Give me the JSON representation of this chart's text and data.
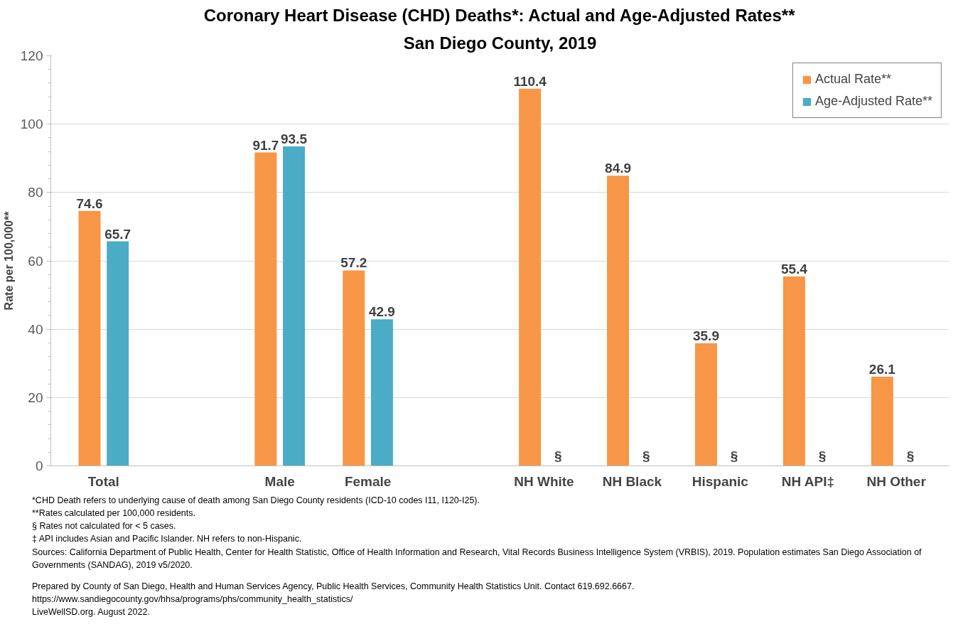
{
  "chart_data": {
    "type": "bar",
    "title": "Coronary Heart Disease (CHD) Deaths*: Actual and Age-Adjusted Rates**",
    "subtitle": "San Diego County, 2019",
    "ylabel": "Rate per 100,000**",
    "categories": [
      "Total",
      null,
      "Male",
      "Female",
      null,
      "NH White",
      "NH Black",
      "Hispanic",
      "NH API‡",
      "NH Other"
    ],
    "series": [
      {
        "name": "Actual Rate**",
        "color": "#f79646",
        "values": [
          74.6,
          null,
          91.7,
          57.2,
          null,
          110.4,
          84.9,
          35.9,
          55.4,
          26.1
        ],
        "value_labels": [
          "74.6",
          null,
          "91.7",
          "57.2",
          null,
          "110.4",
          "84.9",
          "35.9",
          "55.4",
          "26.1"
        ]
      },
      {
        "name": "Age-Adjusted Rate**",
        "color": "#4bacc6",
        "values": [
          65.7,
          null,
          93.5,
          42.9,
          null,
          null,
          null,
          null,
          null,
          null
        ],
        "value_labels": [
          "65.7",
          null,
          "93.5",
          "42.9",
          null,
          "§",
          "§",
          "§",
          "§",
          "§"
        ]
      }
    ],
    "ylim": [
      0,
      120
    ],
    "yticks": [
      0,
      20,
      40,
      60,
      80,
      100,
      120
    ],
    "grid": "y",
    "legend": "top right",
    "annotations": [
      "*CHD Death refers to underlying cause of death among San Diego County residents (ICD-10 codes I11, I120-I25).",
      "**Rates calculated per 100,000 residents.",
      "§ Rates not calculated for < 5 cases.",
      "‡ API includes Asian and Pacific Islander. NH refers to non-Hispanic.",
      "Sources: California Department of Public Health, Center for Health Statistic, Office of Health Information and Research, Vital Records Business Intelligence System (VRBIS), 2019. Population estimates San Diego Association of Governments (SANDAG), 2019 v5/2020.",
      "Prepared by County of San Diego, Health and Human Services Agency, Public Health Services, Community Health Statistics Unit. Contact 619.692.6667.",
      "https://www.sandiegocounty.gov/hhsa/programs/phs/community_health_statistics/",
      "LiveWellSD.org. August 2022."
    ]
  }
}
